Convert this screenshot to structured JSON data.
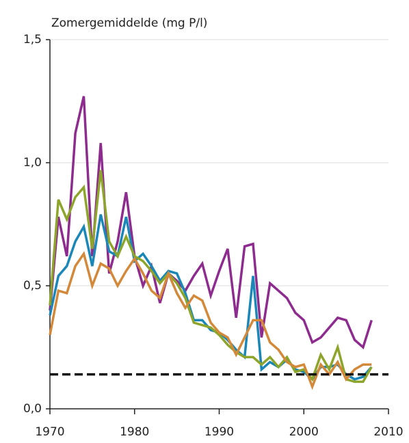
{
  "chart_data": {
    "type": "line",
    "title": "Zomergemiddelde (mg P/l)",
    "x": [
      1970,
      1971,
      1972,
      1973,
      1974,
      1975,
      1976,
      1977,
      1978,
      1979,
      1980,
      1981,
      1982,
      1983,
      1984,
      1985,
      1986,
      1987,
      1988,
      1989,
      1990,
      1991,
      1992,
      1993,
      1994,
      1995,
      1996,
      1997,
      1998,
      1999,
      2000,
      2001,
      2002,
      2003,
      2004,
      2005,
      2006,
      2007,
      2008
    ],
    "series": [
      {
        "color": "#8e2b8e",
        "values": [
          0.4,
          0.78,
          0.62,
          1.12,
          1.27,
          0.62,
          1.08,
          0.55,
          0.68,
          0.88,
          0.62,
          0.5,
          0.58,
          0.43,
          0.55,
          0.52,
          0.48,
          0.54,
          0.59,
          0.46,
          0.56,
          0.65,
          0.37,
          0.66,
          0.67,
          0.29,
          0.51,
          0.48,
          0.45,
          0.39,
          0.36,
          0.27,
          0.29,
          0.33,
          0.37,
          0.36,
          0.28,
          0.25,
          0.36
        ]
      },
      {
        "color": "#1a87b8",
        "values": [
          0.38,
          0.54,
          0.58,
          0.68,
          0.74,
          0.58,
          0.79,
          0.64,
          0.62,
          0.78,
          0.6,
          0.63,
          0.58,
          0.52,
          0.56,
          0.55,
          0.47,
          0.36,
          0.36,
          0.32,
          0.31,
          0.28,
          0.24,
          0.21,
          0.54,
          0.16,
          0.19,
          0.17,
          0.2,
          0.16,
          0.15,
          0.12,
          0.17,
          0.17,
          0.18,
          0.14,
          0.12,
          0.13,
          0.17
        ]
      },
      {
        "color": "#8ca52a",
        "values": [
          0.42,
          0.85,
          0.77,
          0.86,
          0.9,
          0.65,
          0.97,
          0.68,
          0.62,
          0.7,
          0.62,
          0.6,
          0.56,
          0.51,
          0.55,
          0.51,
          0.45,
          0.35,
          0.34,
          0.33,
          0.3,
          0.26,
          0.23,
          0.21,
          0.21,
          0.18,
          0.21,
          0.17,
          0.21,
          0.15,
          0.16,
          0.12,
          0.22,
          0.16,
          0.25,
          0.12,
          0.11,
          0.11,
          0.17
        ]
      },
      {
        "color": "#d4893a",
        "values": [
          0.3,
          0.48,
          0.47,
          0.58,
          0.63,
          0.5,
          0.59,
          0.57,
          0.5,
          0.56,
          0.61,
          0.55,
          0.48,
          0.45,
          0.55,
          0.47,
          0.41,
          0.46,
          0.44,
          0.35,
          0.31,
          0.29,
          0.22,
          0.29,
          0.36,
          0.36,
          0.27,
          0.24,
          0.19,
          0.17,
          0.18,
          0.09,
          0.18,
          0.14,
          0.19,
          0.12,
          0.16,
          0.18,
          0.18
        ]
      }
    ],
    "reference_line": 0.14,
    "xlim": [
      1970,
      2010
    ],
    "xticks": [
      1970,
      1980,
      1990,
      2000,
      2010
    ],
    "ylim": [
      0,
      1.5
    ],
    "yticks": [
      {
        "value": 0,
        "label": "0,0"
      },
      {
        "value": 0.5,
        "label": "0,5"
      },
      {
        "value": 1.0,
        "label": "1,0"
      },
      {
        "value": 1.5,
        "label": "1,5"
      }
    ],
    "grid": true
  }
}
